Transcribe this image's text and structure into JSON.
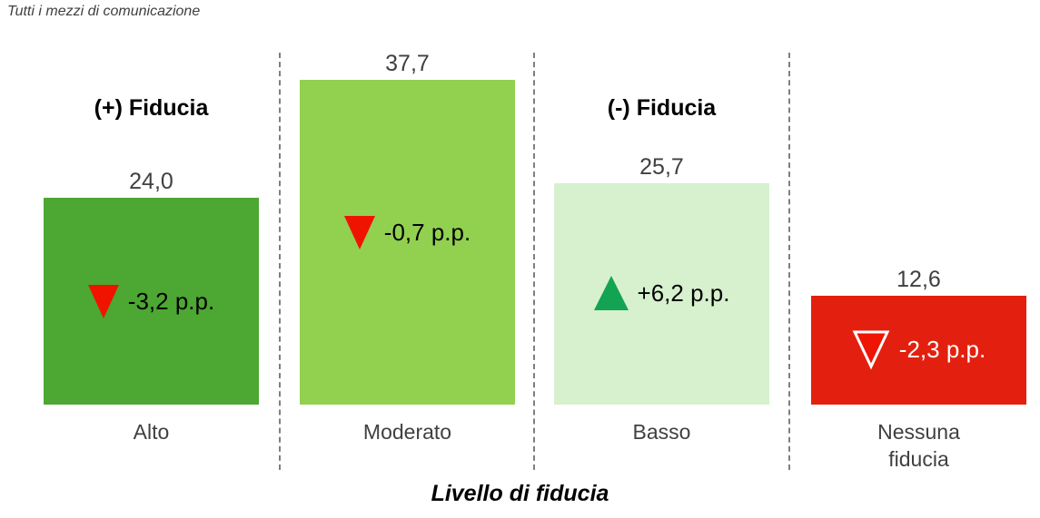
{
  "subtitle": "Tutti i mezzi di comunicazione",
  "annotations": {
    "positive_label": "(+) Fiducia",
    "negative_label": "(-) Fiducia"
  },
  "chart_data": {
    "type": "bar",
    "subtitle": "Tutti i mezzi di comunicazione",
    "xlabel": "Livello di fiducia",
    "ylabel": "",
    "grid": false,
    "legend": false,
    "categories": [
      "Alto",
      "Moderato",
      "Basso",
      "Nessuna fiducia"
    ],
    "values": [
      24.0,
      37.7,
      25.7,
      12.6
    ],
    "ylim": [
      0,
      40
    ],
    "bars": [
      {
        "category": "Alto",
        "value": 24.0,
        "value_label": "24,0",
        "change": "-3,2 p.p.",
        "change_direction": "down",
        "color": "#4ca733",
        "marker_color": "#f01300",
        "marker_style": "filled"
      },
      {
        "category": "Moderato",
        "value": 37.7,
        "value_label": "37,7",
        "change": "-0,7 p.p.",
        "change_direction": "down",
        "color": "#92d050",
        "marker_color": "#f01300",
        "marker_style": "filled"
      },
      {
        "category": "Basso",
        "value": 25.7,
        "value_label": "25,7",
        "change": "+6,2 p.p.",
        "change_direction": "up",
        "color": "#d7f0ce",
        "marker_color": "#12a452",
        "marker_style": "filled"
      },
      {
        "category": "Nessuna fiducia",
        "value": 12.6,
        "value_label": "12,6",
        "change": "-2,3 p.p.",
        "change_direction": "down",
        "color": "#e3200f",
        "marker_color": "#ee1505",
        "marker_style": "white-outline"
      }
    ]
  }
}
